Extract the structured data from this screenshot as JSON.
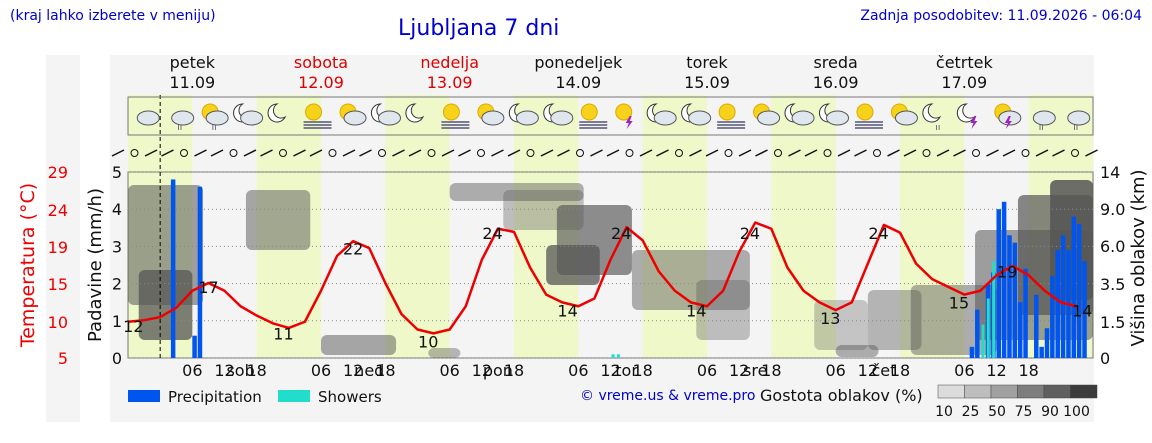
{
  "header": {
    "hint": "(kraj lahko izberete v meniju)",
    "title": "Ljubljana 7 dni",
    "updated": "Zadnja posodobitev: 11.09.2026 - 06:04"
  },
  "credit": "© vreme.us & vreme.pro",
  "colors": {
    "temperature": "#ee0000",
    "precipitation": "#0055ee",
    "showers": "#22ddcc",
    "weekend": "#dd0000",
    "text": "#111111",
    "link": "#0000cc",
    "day_band": "#eef8c8"
  },
  "days": [
    {
      "name": "petek",
      "date": "11.09",
      "weekend": false,
      "axis_label": ""
    },
    {
      "name": "sobota",
      "date": "12.09",
      "weekend": true,
      "axis_label": "sob"
    },
    {
      "name": "nedelja",
      "date": "13.09",
      "weekend": true,
      "axis_label": "ned"
    },
    {
      "name": "ponedeljek",
      "date": "14.09",
      "weekend": false,
      "axis_label": "pon"
    },
    {
      "name": "torek",
      "date": "15.09",
      "weekend": false,
      "axis_label": "tor"
    },
    {
      "name": "sreda",
      "date": "16.09",
      "weekend": false,
      "axis_label": "sre"
    },
    {
      "name": "četrtek",
      "date": "17.09",
      "weekend": false,
      "axis_label": "čet"
    }
  ],
  "weather_icons": [
    "cloudy",
    "cloudy-rain",
    "sun-cloud-rain",
    "moon-cloud",
    "moon",
    "sun-fog",
    "sun-cloud",
    "moon-cloud",
    "moon",
    "sun-fog",
    "sun-cloud",
    "moon-cloud",
    "moon-cloud",
    "sun-fog",
    "sun-storm",
    "moon-cloud",
    "moon-cloud",
    "sun-fog",
    "sun-cloud",
    "moon-cloud",
    "moon-cloud",
    "sun-fog",
    "sun-cloud",
    "moon-rain",
    "moon-storm",
    "sun-cloud-storm",
    "cloud-rain",
    "cloud-rain"
  ],
  "chart_data": {
    "type": "line",
    "hour_ticks": [
      "06",
      "12",
      "18"
    ],
    "x_hours_since_start": true,
    "temperature": {
      "label": "Temperatura (°C)",
      "ticks": [
        5,
        10,
        15,
        19,
        24,
        29
      ],
      "points": [
        [
          0,
          12
        ],
        [
          3,
          12.2
        ],
        [
          6,
          12.6
        ],
        [
          9,
          13.8
        ],
        [
          12,
          16
        ],
        [
          15,
          17
        ],
        [
          18,
          16
        ],
        [
          21,
          14
        ],
        [
          24,
          12.8
        ],
        [
          27,
          11.8
        ],
        [
          30,
          11.2
        ],
        [
          33,
          12
        ],
        [
          36,
          16
        ],
        [
          39,
          20.5
        ],
        [
          42,
          22.4
        ],
        [
          45,
          21.5
        ],
        [
          48,
          17
        ],
        [
          51,
          13
        ],
        [
          54,
          11
        ],
        [
          57,
          10.5
        ],
        [
          60,
          11
        ],
        [
          63,
          14
        ],
        [
          66,
          20
        ],
        [
          69,
          24
        ],
        [
          72,
          23.6
        ],
        [
          75,
          19
        ],
        [
          78,
          15.5
        ],
        [
          81,
          14.5
        ],
        [
          84,
          14
        ],
        [
          87,
          15
        ],
        [
          90,
          20
        ],
        [
          93,
          24.2
        ],
        [
          96,
          22.5
        ],
        [
          99,
          18.5
        ],
        [
          102,
          16
        ],
        [
          105,
          14.5
        ],
        [
          108,
          14
        ],
        [
          111,
          16
        ],
        [
          114,
          21
        ],
        [
          117,
          24.8
        ],
        [
          120,
          24
        ],
        [
          123,
          19
        ],
        [
          126,
          16
        ],
        [
          129,
          14.5
        ],
        [
          132,
          13.5
        ],
        [
          135,
          14.5
        ],
        [
          138,
          19.5
        ],
        [
          141,
          24.5
        ],
        [
          144,
          23.5
        ],
        [
          147,
          19.5
        ],
        [
          150,
          17.5
        ],
        [
          153,
          16.5
        ],
        [
          156,
          15.5
        ],
        [
          159,
          16
        ],
        [
          162,
          18
        ],
        [
          165,
          19.2
        ],
        [
          168,
          18
        ],
        [
          171,
          16
        ],
        [
          174,
          14.5
        ],
        [
          177,
          14
        ]
      ],
      "labels": [
        {
          "x": 1,
          "v": "12"
        },
        {
          "x": 15,
          "v": "17"
        },
        {
          "x": 29,
          "v": "11"
        },
        {
          "x": 42,
          "v": "22"
        },
        {
          "x": 56,
          "v": "10"
        },
        {
          "x": 68,
          "v": "24"
        },
        {
          "x": 82,
          "v": "14"
        },
        {
          "x": 92,
          "v": "24"
        },
        {
          "x": 106,
          "v": "14"
        },
        {
          "x": 116,
          "v": "24"
        },
        {
          "x": 131,
          "v": "13"
        },
        {
          "x": 140,
          "v": "24"
        },
        {
          "x": 155,
          "v": "15"
        },
        {
          "x": 164,
          "v": "19"
        },
        {
          "x": 178,
          "v": "14"
        }
      ]
    },
    "precipitation": {
      "label": "Padavine (mm/h)",
      "ylim": [
        0,
        5
      ],
      "ticks": [
        0,
        1,
        2,
        3,
        4,
        5
      ],
      "bars": [
        [
          8,
          4.8
        ],
        [
          13,
          4.6
        ],
        [
          12,
          0.6
        ],
        [
          157,
          0.3
        ],
        [
          158,
          1.3
        ],
        [
          160,
          2.0
        ],
        [
          161,
          2.3
        ],
        [
          162,
          4.0
        ],
        [
          163,
          4.2
        ],
        [
          164,
          3.3
        ],
        [
          165,
          3.1
        ],
        [
          166,
          1.5
        ],
        [
          167,
          2.4
        ],
        [
          169,
          1.7
        ],
        [
          170,
          0.3
        ],
        [
          171,
          0.8
        ],
        [
          172,
          2.2
        ],
        [
          173,
          2.9
        ],
        [
          174,
          3.3
        ],
        [
          175,
          2.9
        ],
        [
          176,
          3.8
        ],
        [
          177,
          3.6
        ],
        [
          178,
          2.6
        ]
      ]
    },
    "showers": {
      "bars": [
        [
          159,
          0.9
        ],
        [
          160,
          1.6
        ],
        [
          161,
          2.6
        ],
        [
          90,
          0.1
        ],
        [
          91,
          0.1
        ]
      ]
    },
    "cloud_height": {
      "label": "Višina oblakov (km)",
      "ticks": [
        "0",
        "1.5",
        "3.5",
        "6.0",
        "9.0",
        "14"
      ]
    },
    "cloud_density": {
      "label": "Gostota oblakov (%)",
      "ticks": [
        "10",
        "25",
        "50",
        "75",
        "90",
        "100"
      ]
    },
    "legend": [
      {
        "name": "Precipitation",
        "color": "#0055ee"
      },
      {
        "name": "Showers",
        "color": "#22ddcc"
      }
    ]
  }
}
